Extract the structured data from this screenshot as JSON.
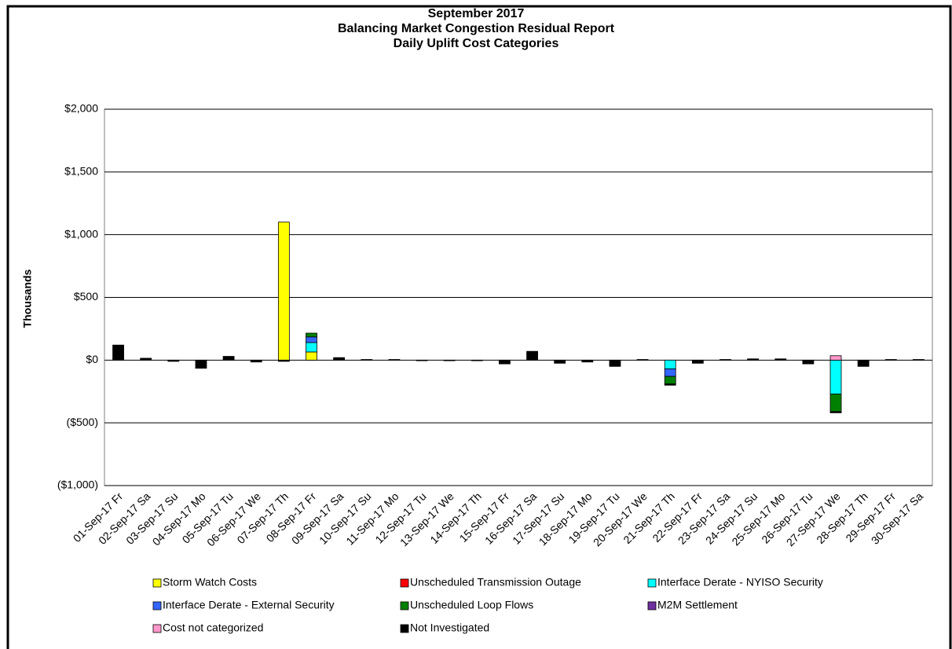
{
  "chart_data": {
    "type": "stacked_bar",
    "title_lines": [
      "September 2017",
      "Balancing Market Congestion Residual Report",
      "Daily Uplift Cost Categories"
    ],
    "y_label": "Thousands",
    "categories": [
      "01-Sep-17 Fr",
      "02-Sep-17 Sa",
      "03-Sep-17 Su",
      "04-Sep-17 Mo",
      "05-Sep-17 Tu",
      "06-Sep-17 We",
      "07-Sep-17 Th",
      "08-Sep-17 Fr",
      "09-Sep-17 Sa",
      "10-Sep-17 Su",
      "11-Sep-17 Mo",
      "12-Sep-17 Tu",
      "13-Sep-17 We",
      "14-Sep-17 Th",
      "15-Sep-17 Fr",
      "16-Sep-17 Sa",
      "17-Sep-17 Su",
      "18-Sep-17 Mo",
      "19-Sep-17 Tu",
      "20-Sep-17 We",
      "21-Sep-17 Th",
      "22-Sep-17 Fr",
      "23-Sep-17 Sa",
      "24-Sep-17 Su",
      "25-Sep-17 Mo",
      "26-Sep-17 Tu",
      "27-Sep-17 We",
      "28-Sep-17 Th",
      "29-Sep-17 Fr",
      "30-Sep-17 Sa"
    ],
    "series": [
      {
        "name": "Storm Watch Costs",
        "color": "#ffff00",
        "values": [
          0,
          0,
          0,
          0,
          0,
          0,
          1100,
          65,
          0,
          0,
          0,
          0,
          0,
          0,
          0,
          0,
          0,
          0,
          0,
          0,
          0,
          0,
          0,
          0,
          0,
          0,
          0,
          0,
          0,
          0
        ]
      },
      {
        "name": "Unscheduled Transmission Outage",
        "color": "#ff0000",
        "values": [
          0,
          0,
          0,
          0,
          0,
          0,
          0,
          0,
          0,
          0,
          0,
          0,
          0,
          0,
          0,
          0,
          0,
          0,
          0,
          0,
          0,
          0,
          0,
          0,
          0,
          0,
          0,
          0,
          0,
          0
        ]
      },
      {
        "name": "Interface Derate - NYISO Security",
        "color": "#00ffff",
        "values": [
          0,
          0,
          0,
          0,
          0,
          0,
          0,
          75,
          0,
          0,
          0,
          0,
          0,
          0,
          0,
          0,
          0,
          0,
          0,
          0,
          -70,
          0,
          0,
          0,
          0,
          0,
          -270,
          0,
          0,
          0
        ]
      },
      {
        "name": "Interface Derate - External Security",
        "color": "#3366ff",
        "values": [
          0,
          0,
          0,
          0,
          0,
          0,
          0,
          45,
          0,
          0,
          0,
          0,
          0,
          0,
          0,
          0,
          0,
          0,
          0,
          0,
          -60,
          0,
          0,
          0,
          0,
          0,
          0,
          0,
          0,
          0
        ]
      },
      {
        "name": "Unscheduled Loop Flows",
        "color": "#008000",
        "values": [
          0,
          0,
          0,
          0,
          0,
          0,
          0,
          30,
          0,
          0,
          0,
          0,
          0,
          0,
          0,
          0,
          0,
          0,
          0,
          0,
          -60,
          0,
          0,
          0,
          0,
          0,
          -140,
          0,
          0,
          0
        ]
      },
      {
        "name": "M2M Settlement",
        "color": "#7030a0",
        "values": [
          0,
          0,
          0,
          0,
          0,
          0,
          0,
          0,
          0,
          0,
          0,
          0,
          0,
          0,
          0,
          0,
          0,
          0,
          0,
          0,
          0,
          0,
          0,
          0,
          0,
          0,
          0,
          0,
          0,
          0
        ]
      },
      {
        "name": "Cost not categorized",
        "color": "#ff99cc",
        "values": [
          0,
          0,
          0,
          0,
          0,
          0,
          0,
          0,
          0,
          0,
          0,
          0,
          0,
          0,
          0,
          0,
          0,
          0,
          0,
          0,
          0,
          0,
          0,
          0,
          0,
          0,
          35,
          0,
          0,
          0
        ]
      },
      {
        "name": "Not Investigated",
        "color": "#000000",
        "values": [
          120,
          15,
          -10,
          -65,
          30,
          -15,
          -10,
          0,
          20,
          5,
          5,
          -5,
          -5,
          -5,
          -30,
          70,
          -25,
          -15,
          -50,
          5,
          -10,
          -25,
          5,
          10,
          10,
          -30,
          -10,
          -50,
          5,
          5
        ]
      }
    ],
    "ylim": [
      -1000,
      2000
    ],
    "yticks": [
      {
        "value": -1000,
        "label": "($1,000)"
      },
      {
        "value": -500,
        "label": "($500)"
      },
      {
        "value": 0,
        "label": "$0"
      },
      {
        "value": 500,
        "label": "$500"
      },
      {
        "value": 1000,
        "label": "$1,000"
      },
      {
        "value": 1500,
        "label": "$1,500"
      },
      {
        "value": 2000,
        "label": "$2,000"
      }
    ],
    "negative_label_color": "#ff0000",
    "grid": true
  }
}
